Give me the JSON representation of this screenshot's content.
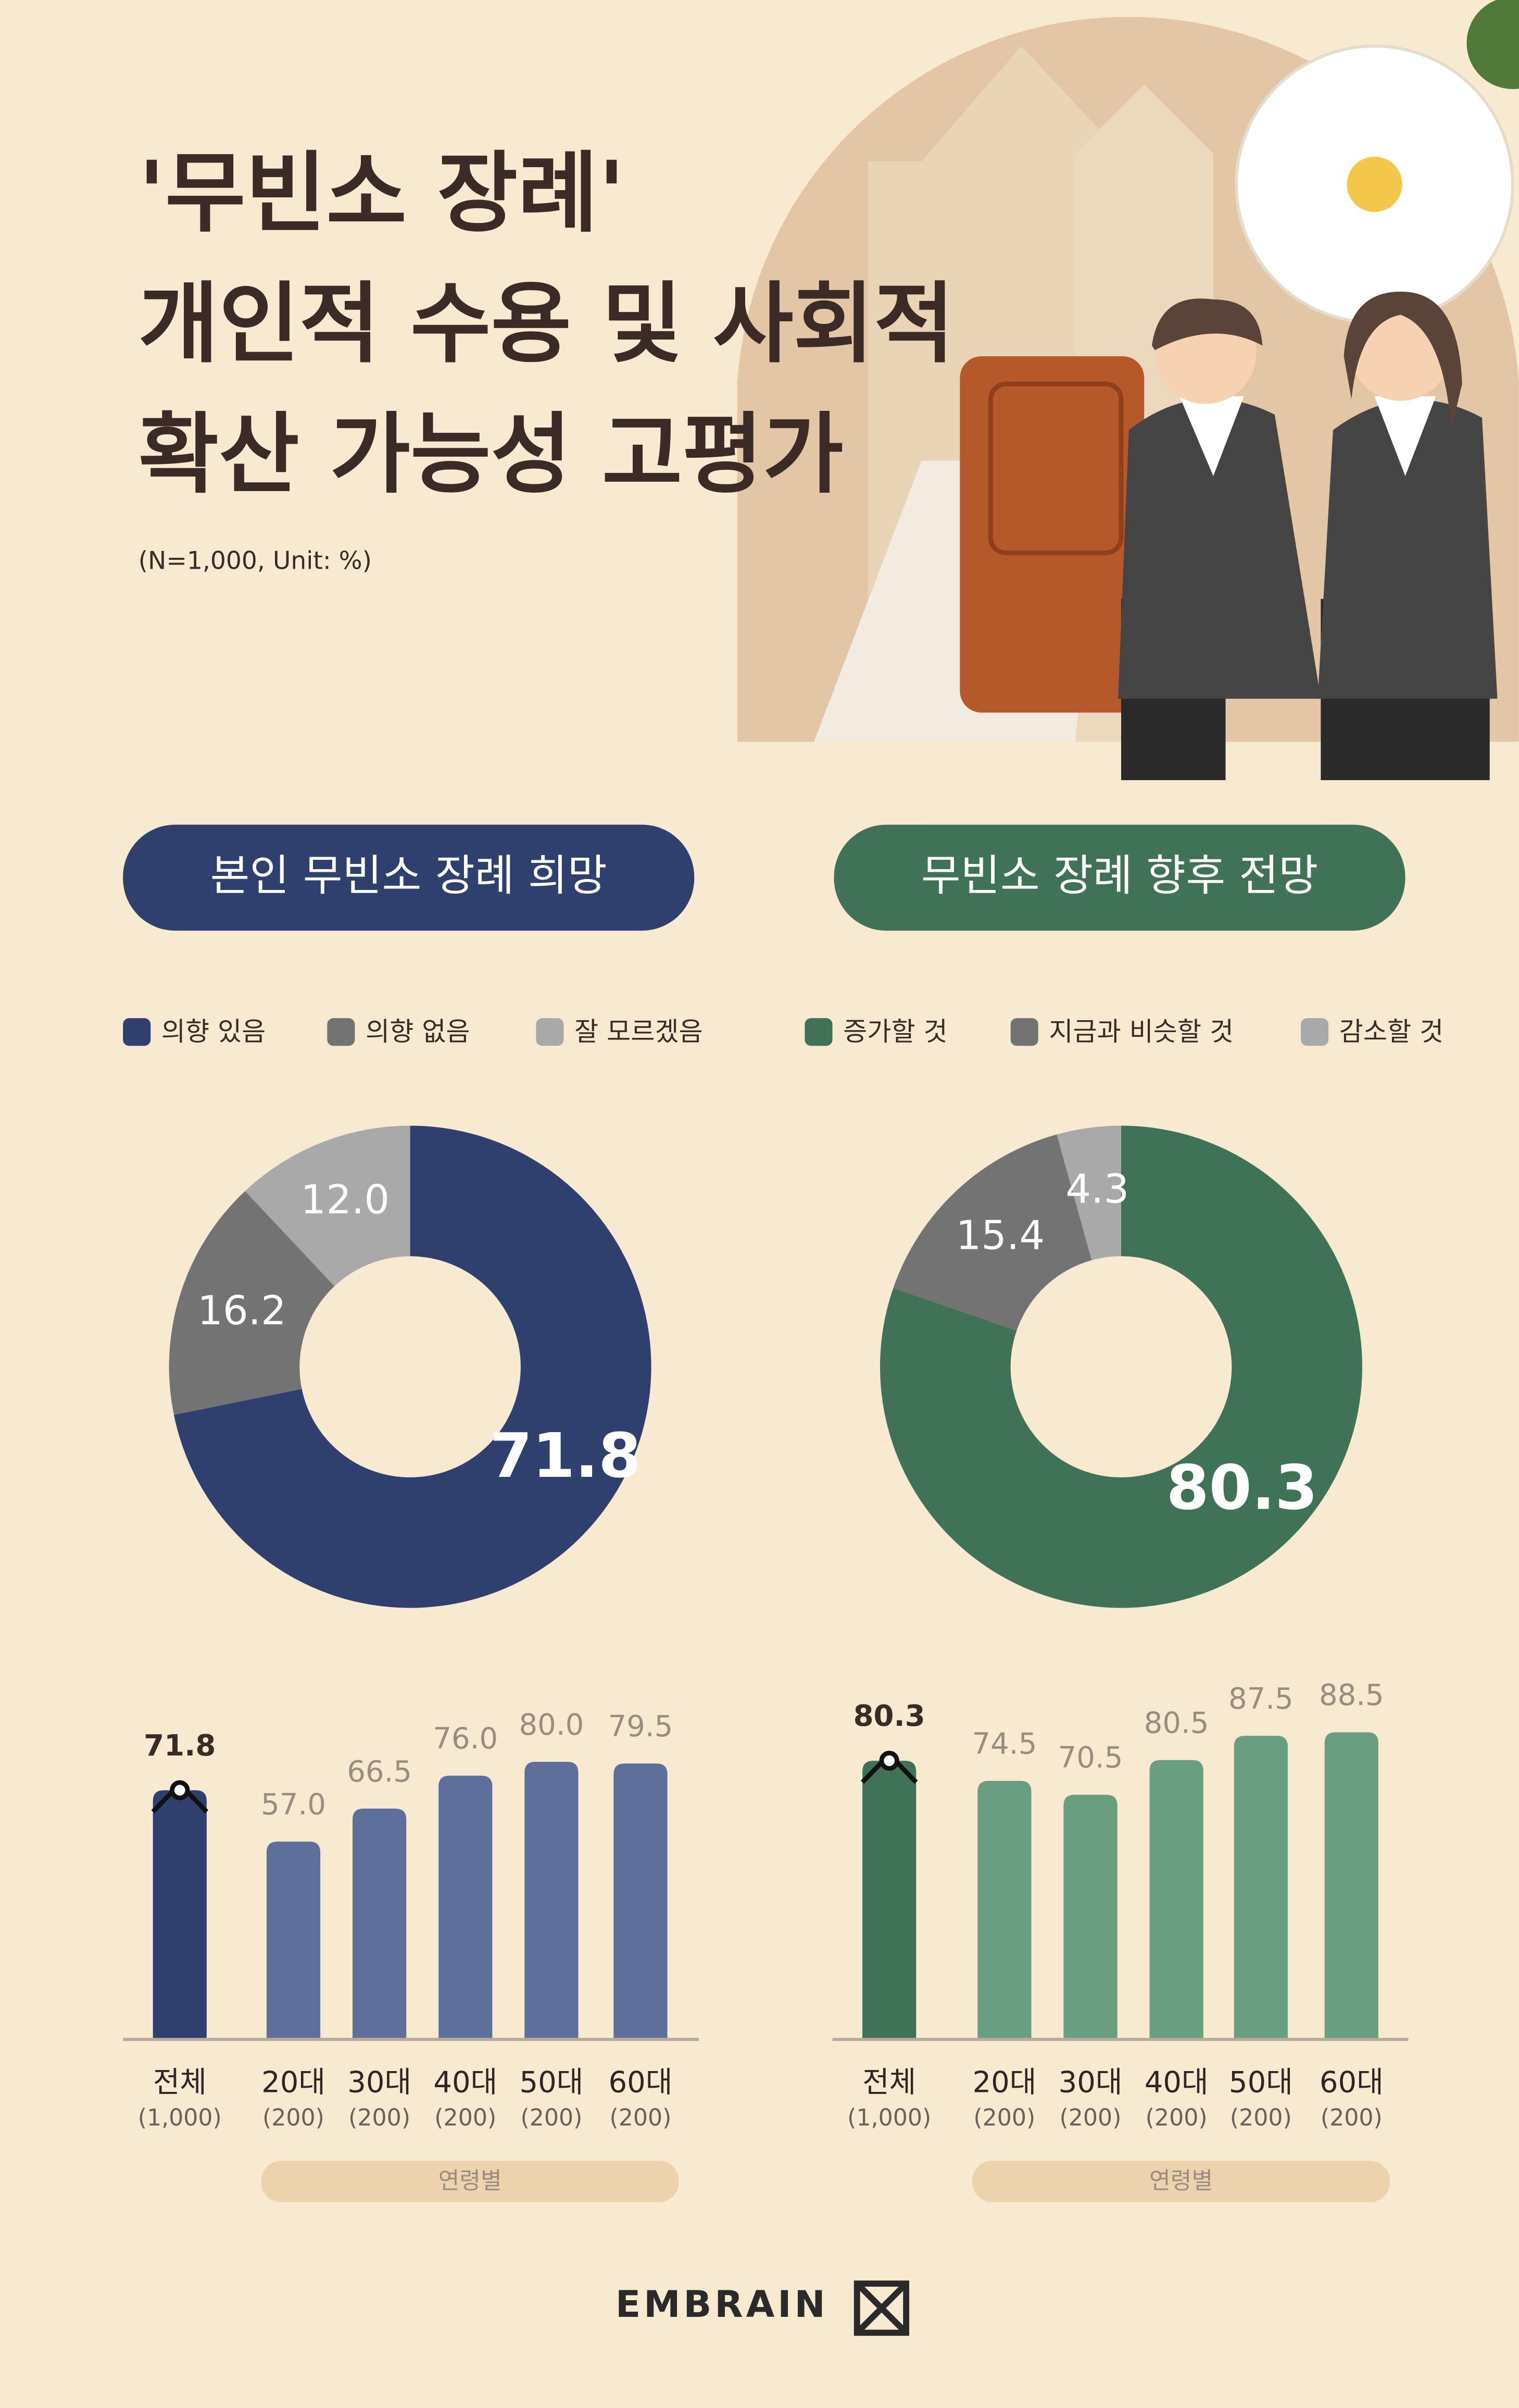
{
  "header": {
    "title_lines": [
      "'무빈소 장례'",
      "개인적 수용 및 사회적",
      "확산 가능성 고평가"
    ],
    "subtitle": "(N=1,000, Unit: %)"
  },
  "footer": {
    "brand": "EMBRAIN"
  },
  "chart_data": [
    {
      "type": "donut",
      "title": "본인 무빈소 장례 희망",
      "categories": [
        "의향 있음",
        "의향 없음",
        "잘 모르겠음"
      ],
      "values": [
        71.8,
        16.2,
        12.0
      ],
      "value_labels": [
        "71.8",
        "16.2",
        "12.0"
      ],
      "colors": [
        "#2f3f6e",
        "#737373",
        "#a9a9a9"
      ]
    },
    {
      "type": "donut",
      "title": "무빈소 장례 향후 전망",
      "categories": [
        "증가할 것",
        "지금과 비슷할 것",
        "감소할 것"
      ],
      "values": [
        80.3,
        15.4,
        4.3
      ],
      "value_labels": [
        "80.3",
        "15.4",
        "4.3"
      ],
      "colors": [
        "#3f7256",
        "#737373",
        "#a9a9a9"
      ]
    },
    {
      "type": "bar",
      "categories": [
        "전체",
        "20대",
        "30대",
        "40대",
        "50대",
        "60대"
      ],
      "sample_sizes": [
        "(1,000)",
        "(200)",
        "(200)",
        "(200)",
        "(200)",
        "(200)"
      ],
      "group_label": "연령별",
      "values": [
        71.8,
        57.0,
        66.5,
        76.0,
        80.0,
        79.5
      ],
      "value_labels": [
        "71.8",
        "57.0",
        "66.5",
        "76.0",
        "80.0",
        "79.5"
      ],
      "colors": [
        "#2f3f6e",
        "#5f6f9c",
        "#5f6f9c",
        "#5f6f9c",
        "#5f6f9c",
        "#5f6f9c"
      ]
    },
    {
      "type": "bar",
      "categories": [
        "전체",
        "20대",
        "30대",
        "40대",
        "50대",
        "60대"
      ],
      "sample_sizes": [
        "(1,000)",
        "(200)",
        "(200)",
        "(200)",
        "(200)",
        "(200)"
      ],
      "group_label": "연령별",
      "values": [
        80.3,
        74.5,
        70.5,
        80.5,
        87.5,
        88.5
      ],
      "value_labels": [
        "80.3",
        "74.5",
        "70.5",
        "80.5",
        "87.5",
        "88.5"
      ],
      "colors": [
        "#3f7256",
        "#6a9e80",
        "#6a9e80",
        "#6a9e80",
        "#6a9e80",
        "#6a9e80"
      ]
    }
  ]
}
